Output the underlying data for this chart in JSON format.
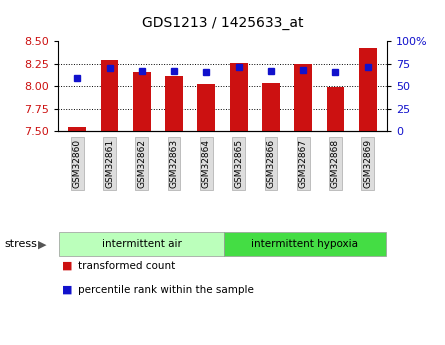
{
  "title": "GDS1213 / 1425633_at",
  "samples": [
    "GSM32860",
    "GSM32861",
    "GSM32862",
    "GSM32863",
    "GSM32864",
    "GSM32865",
    "GSM32866",
    "GSM32867",
    "GSM32868",
    "GSM32869"
  ],
  "red_values": [
    7.55,
    8.29,
    8.16,
    8.11,
    8.02,
    8.26,
    8.04,
    8.25,
    7.99,
    8.43
  ],
  "blue_values": [
    8.09,
    8.2,
    8.17,
    8.17,
    8.16,
    8.22,
    8.17,
    8.18,
    8.16,
    8.22
  ],
  "ymin": 7.5,
  "ymax": 8.5,
  "yticks": [
    7.5,
    7.75,
    8.0,
    8.25,
    8.5
  ],
  "right_yticks": [
    0,
    25,
    50,
    75,
    100
  ],
  "bar_color": "#cc1111",
  "dot_color": "#1111cc",
  "group1_label": "intermittent air",
  "group2_label": "intermittent hypoxia",
  "group1_color": "#bbffbb",
  "group2_color": "#44dd44",
  "stress_label": "stress",
  "legend_red": "transformed count",
  "legend_blue": "percentile rank within the sample",
  "tick_label_bg": "#dddddd",
  "grid_lines": [
    7.75,
    8.0,
    8.25
  ]
}
